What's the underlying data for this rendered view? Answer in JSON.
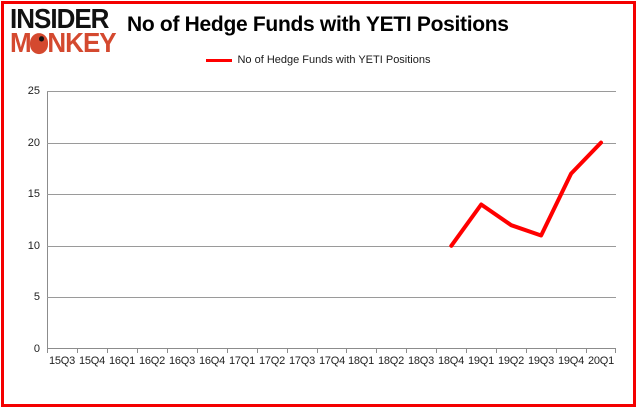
{
  "logo": {
    "line1": "INSIDER",
    "line2": "MONKEY",
    "monkey_color": "#d4492f"
  },
  "header": {
    "title": "No of Hedge Funds with YETI Positions"
  },
  "legend": {
    "label": "No of Hedge Funds with YETI Positions"
  },
  "frame": {
    "border_color": "#f40000"
  },
  "chart_data": {
    "type": "line",
    "title": "No of Hedge Funds with YETI Positions",
    "xlabel": "",
    "ylabel": "",
    "categories": [
      "15Q3",
      "15Q4",
      "16Q1",
      "16Q2",
      "16Q3",
      "16Q4",
      "17Q1",
      "17Q2",
      "17Q3",
      "17Q4",
      "18Q1",
      "18Q2",
      "18Q3",
      "18Q4",
      "19Q1",
      "19Q2",
      "19Q3",
      "19Q4",
      "20Q1"
    ],
    "series": [
      {
        "name": "No of Hedge Funds with YETI Positions",
        "color": "#ff0000",
        "values": [
          null,
          null,
          null,
          null,
          null,
          null,
          null,
          null,
          null,
          null,
          null,
          null,
          null,
          10,
          14,
          12,
          11,
          17,
          20
        ]
      }
    ],
    "ylim": [
      0,
      25
    ],
    "yticks": [
      0,
      5,
      10,
      15,
      20,
      25
    ],
    "grid": true,
    "legend_position": "top-center",
    "colors": {
      "gridline": "#9a9a9a",
      "axis": "#8c8c8c",
      "tick_label": "#1f1f1f"
    }
  }
}
